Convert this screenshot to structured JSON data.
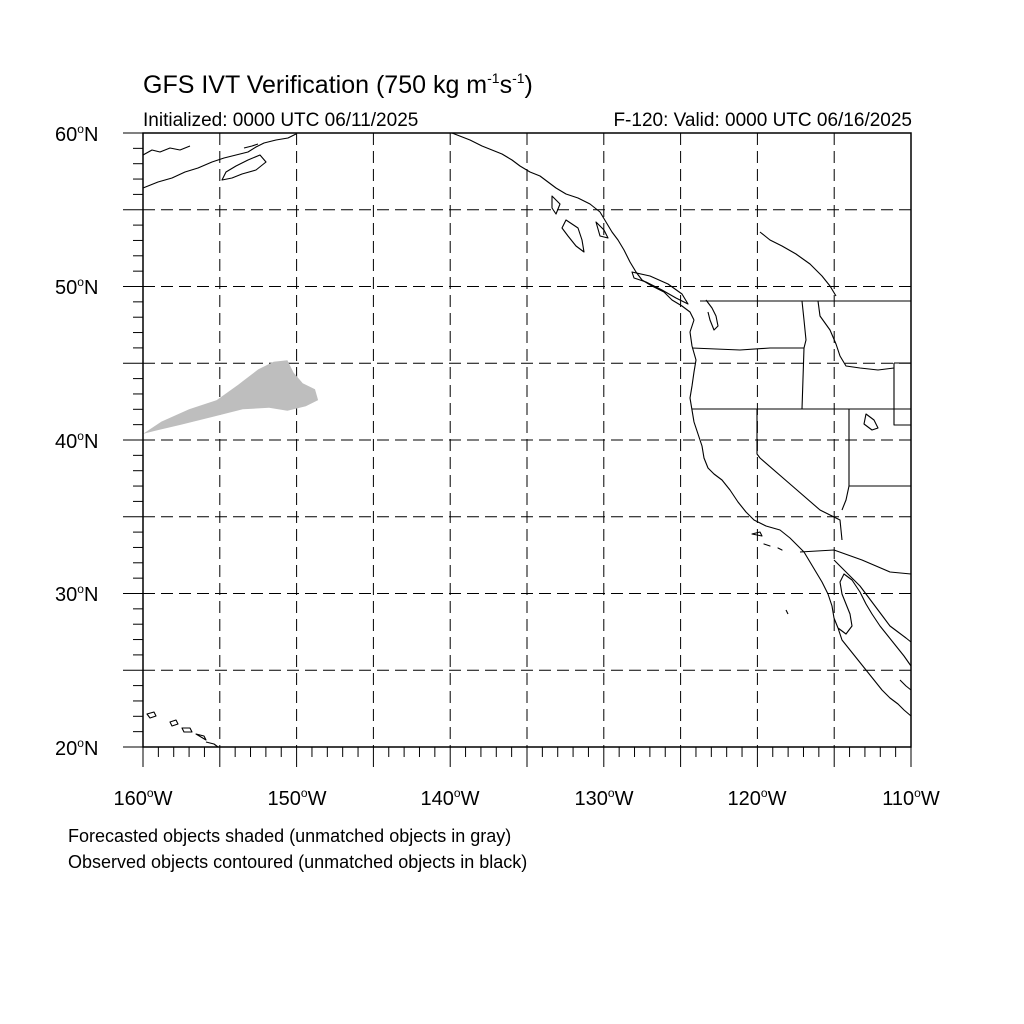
{
  "title": {
    "prefix": "GFS IVT Verification (750 kg m",
    "exp1": "-1",
    "mid": "s",
    "exp2": "-1",
    "suffix": ")"
  },
  "initialized": "Initialized: 0000 UTC 06/11/2025",
  "valid": "F-120: Valid: 0000 UTC 06/16/2025",
  "map": {
    "lon_range": [
      -160,
      -110
    ],
    "lat_range": [
      20,
      60
    ],
    "grid": "dashed",
    "grid_lons": [
      -155,
      -150,
      -145,
      -140,
      -135,
      -130,
      -125,
      -120,
      -115
    ],
    "grid_lats": [
      25,
      30,
      35,
      40,
      45,
      50,
      55
    ],
    "lat_labels": [
      {
        "num": "60",
        "hem": "N"
      },
      {
        "num": "50",
        "hem": "N"
      },
      {
        "num": "40",
        "hem": "N"
      },
      {
        "num": "30",
        "hem": "N"
      },
      {
        "num": "20",
        "hem": "N"
      }
    ],
    "lon_labels": [
      {
        "num": "160",
        "hem": "W"
      },
      {
        "num": "150",
        "hem": "W"
      },
      {
        "num": "140",
        "hem": "W"
      },
      {
        "num": "130",
        "hem": "W"
      },
      {
        "num": "120",
        "hem": "W"
      },
      {
        "num": "110",
        "hem": "W"
      }
    ],
    "unmatched_forecast_color": "#bebebe",
    "forecast_object_polygon": [
      [
        -160,
        40.4
      ],
      [
        -158.8,
        41.2
      ],
      [
        -157,
        42.0
      ],
      [
        -155.2,
        42.6
      ],
      [
        -153.8,
        43.6
      ],
      [
        -152.5,
        44.6
      ],
      [
        -151.5,
        45.1
      ],
      [
        -150.6,
        45.2
      ],
      [
        -150.2,
        44.4
      ],
      [
        -149.6,
        43.7
      ],
      [
        -148.8,
        43.3
      ],
      [
        -148.6,
        42.6
      ],
      [
        -149.4,
        42.2
      ],
      [
        -150.6,
        41.9
      ],
      [
        -151.8,
        42.1
      ],
      [
        -153.5,
        42.0
      ],
      [
        -155.5,
        41.5
      ],
      [
        -157.5,
        41.0
      ],
      [
        -159.2,
        40.6
      ]
    ]
  },
  "notes": {
    "line1": "Forecasted objects shaded (unmatched objects in gray)",
    "line2": "Observed objects contoured (unmatched objects in black)"
  }
}
